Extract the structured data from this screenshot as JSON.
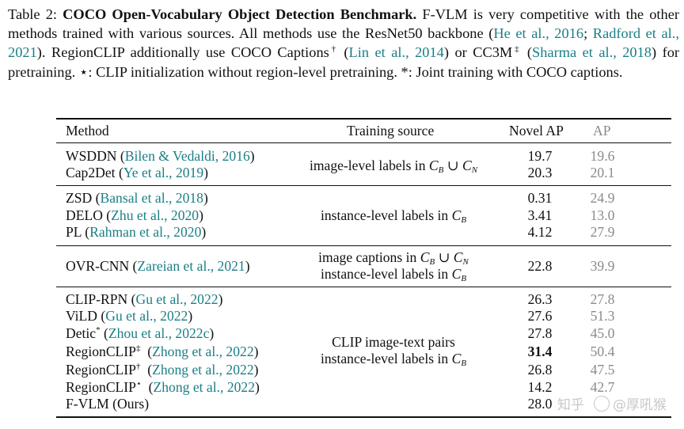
{
  "caption": {
    "label": "Table 2:",
    "title": "COCO Open-Vocabulary Object Detection Benchmark.",
    "text1": "F-VLM is very competitive with the other methods trained with various sources. All methods use the ResNet50 backbone (",
    "cite_he": "He et al., 2016",
    "sep1": "; ",
    "cite_radford": "Radford et al., 2021",
    "text2": "). RegionCLIP additionally use COCO Captions",
    "dagger": "†",
    "text3": " (",
    "cite_lin": "Lin et al., 2014",
    "text4": ") or CC3M",
    "ddagger": "‡",
    "text5": " (",
    "cite_sharma": "Sharma et al., 2018",
    "text6": ") for pretraining. ⋆: CLIP initialization without region-level pretraining. *: Joint training with COCO captions."
  },
  "table": {
    "headers": {
      "method": "Method",
      "source": "Training source",
      "novel_ap": "Novel AP",
      "ap": "AP"
    },
    "rows": [
      {
        "name": "WSDDN",
        "sup": "",
        "cite": "Bilen & Vedaldi, 2016",
        "novel_ap": "19.7",
        "ap": "19.6"
      },
      {
        "name": "Cap2Det",
        "sup": "",
        "cite": "Ye et al., 2019",
        "novel_ap": "20.3",
        "ap": "20.1"
      },
      {
        "name": "ZSD",
        "sup": "",
        "cite": "Bansal et al., 2018",
        "novel_ap": "0.31",
        "ap": "24.9"
      },
      {
        "name": "DELO",
        "sup": "",
        "cite": "Zhu et al., 2020",
        "novel_ap": "3.41",
        "ap": "13.0"
      },
      {
        "name": "PL",
        "sup": "",
        "cite": "Rahman et al., 2020",
        "novel_ap": "4.12",
        "ap": "27.9"
      },
      {
        "name": "OVR-CNN",
        "sup": "",
        "cite": "Zareian et al., 2021",
        "novel_ap": "22.8",
        "ap": "39.9"
      },
      {
        "name": "CLIP-RPN",
        "sup": "",
        "cite": "Gu et al., 2022",
        "novel_ap": "26.3",
        "ap": "27.8"
      },
      {
        "name": "ViLD",
        "sup": "",
        "cite": "Gu et al., 2022",
        "novel_ap": "27.6",
        "ap": "51.3"
      },
      {
        "name": "Detic",
        "sup": "*",
        "cite": "Zhou et al., 2022c",
        "novel_ap": "27.8",
        "ap": "45.0"
      },
      {
        "name": "RegionCLIP",
        "sup": "‡",
        "cite": "Zhong et al., 2022",
        "novel_ap": "31.4",
        "ap": "50.4"
      },
      {
        "name": "RegionCLIP",
        "sup": "†",
        "cite": "Zhong et al., 2022",
        "novel_ap": "26.8",
        "ap": "47.5"
      },
      {
        "name": "RegionCLIP",
        "sup": "⋆",
        "cite": "Zhong et al., 2022",
        "novel_ap": "14.2",
        "ap": "42.7"
      },
      {
        "name": "F-VLM (Ours)",
        "sup": "",
        "cite": "",
        "novel_ap": "28.0",
        "ap": ""
      }
    ],
    "sources": {
      "g1": "image-level labels in",
      "g2": "instance-level labels in",
      "g3a": "image captions in",
      "g3b": "instance-level labels in",
      "g4a": "CLIP image-text pairs",
      "g4b": "instance-level labels in"
    },
    "math": {
      "cb": "C",
      "b": "B",
      "cup": "∪",
      "n": "N"
    }
  },
  "watermark": {
    "text1": "知乎",
    "text2": "@厚吼猴"
  }
}
